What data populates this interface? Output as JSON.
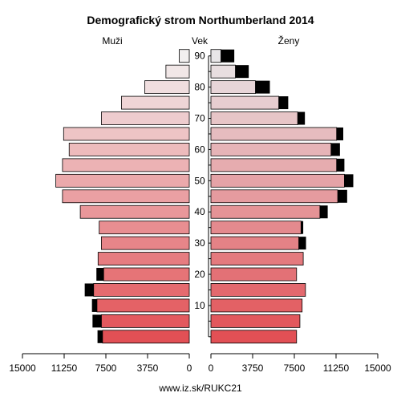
{
  "chart_data": {
    "type": "bar",
    "title": "Demografický strom Northumberland 2014",
    "left_label": "Muži",
    "center_label": "Vek",
    "right_label": "Ženy",
    "footer": "www.iz.sk/RUKC21",
    "age_ticks": [
      "10",
      "20",
      "30",
      "40",
      "50",
      "60",
      "70",
      "80",
      "90"
    ],
    "male_ticks": [
      "15000",
      "11250",
      "7500",
      "3750",
      "0"
    ],
    "female_ticks": [
      "0",
      "3750",
      "7500",
      "11250",
      "15000"
    ],
    "xlim": [
      0,
      15000
    ],
    "age_groups": [
      "0-4",
      "5-9",
      "10-14",
      "15-19",
      "20-24",
      "25-29",
      "30-34",
      "35-39",
      "40-44",
      "45-49",
      "50-54",
      "55-59",
      "60-64",
      "65-69",
      "70-74",
      "75-79",
      "80-84",
      "85-89",
      "90+"
    ],
    "series": [
      {
        "name": "Muži",
        "values": [
          7800,
          7900,
          8300,
          8600,
          7700,
          8200,
          7900,
          8100,
          9800,
          11400,
          12000,
          11400,
          10800,
          11300,
          7900,
          6100,
          4000,
          2100,
          900
        ],
        "excess": [
          450,
          800,
          450,
          800,
          650,
          0,
          0,
          0,
          0,
          0,
          0,
          0,
          0,
          0,
          0,
          0,
          0,
          0,
          0
        ]
      },
      {
        "name": "Ženy",
        "values": [
          7700,
          8000,
          8200,
          8500,
          7700,
          8300,
          7900,
          8100,
          9800,
          11400,
          12000,
          11300,
          10800,
          11300,
          7800,
          6100,
          4000,
          2200,
          900
        ],
        "excess": [
          0,
          0,
          0,
          0,
          0,
          0,
          650,
          200,
          700,
          850,
          800,
          700,
          800,
          600,
          650,
          850,
          1300,
          1200,
          1200
        ]
      }
    ]
  }
}
